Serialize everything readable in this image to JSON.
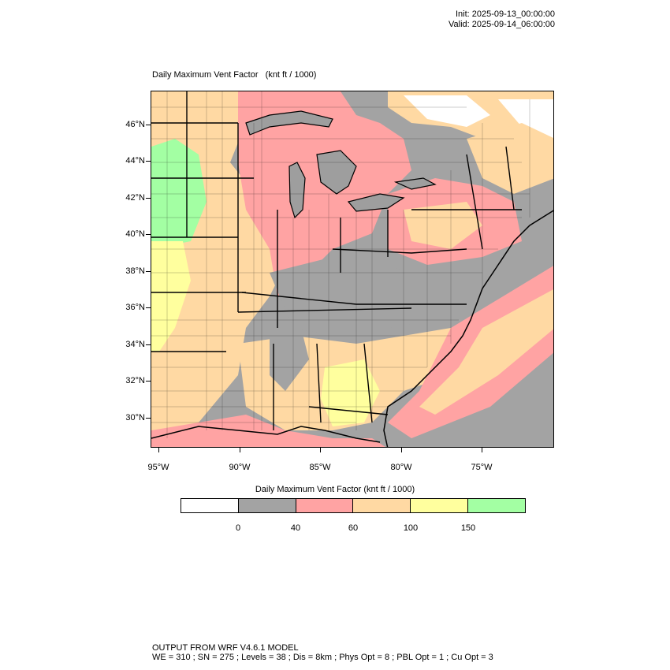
{
  "header": {
    "init": "Init: 2025-09-13_00:00:00",
    "valid": "Valid: 2025-09-14_06:00:00"
  },
  "map": {
    "title": "Daily Maximum Vent Factor",
    "units": "(knt ft / 1000)",
    "lat_ticks": [
      "46°N",
      "44°N",
      "42°N",
      "40°N",
      "38°N",
      "36°N",
      "34°N",
      "32°N",
      "30°N"
    ],
    "lon_ticks": [
      "95°W",
      "90°W",
      "85°W",
      "80°W",
      "75°W"
    ],
    "colors": {
      "lt0": "#ffffff",
      "c0_40": "#a3a3a3",
      "c40_60": "#ffa3a3",
      "c60_100": "#ffd9a3",
      "c100_150": "#ffff9e",
      "c150": "#a3ffa3"
    }
  },
  "colorbar": {
    "title": "Daily Maximum Vent Factor  (knt ft / 1000)",
    "colors": [
      "#ffffff",
      "#a3a3a3",
      "#ffa3a3",
      "#ffd9a3",
      "#ffff9e",
      "#a3ffa3"
    ],
    "labels": [
      "0",
      "40",
      "60",
      "100",
      "150"
    ]
  },
  "footer": {
    "line1": "OUTPUT FROM WRF V4.6.1 MODEL",
    "line2": "WE = 310 ; SN = 275 ; Levels = 38 ; Dis = 8km ; Phys Opt = 8 ; PBL Opt = 1 ; Cu Opt = 3"
  }
}
